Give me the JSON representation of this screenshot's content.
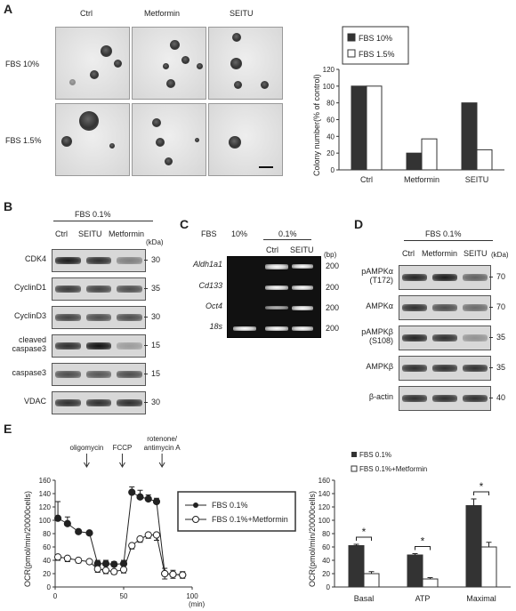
{
  "panels": {
    "A": "A",
    "B": "B",
    "C": "C",
    "D": "D",
    "E": "E"
  },
  "panelA": {
    "col_labels": [
      "Ctrl",
      "Metformin",
      "SEITU"
    ],
    "row_labels": [
      "FBS 10%",
      "FBS 1.5%"
    ]
  },
  "panelB": {
    "condition": "FBS 0.1%",
    "lanes": [
      "Ctrl",
      "SEITU",
      "Metformin"
    ],
    "kda_unit": "(kDa)",
    "rows": [
      {
        "label": "CDK4",
        "kda": "30"
      },
      {
        "label": "CyclinD1",
        "kda": "35"
      },
      {
        "label": "CyclinD3",
        "kda": "30"
      },
      {
        "label": "cleaved caspase3",
        "kda": "15"
      },
      {
        "label": "caspase3",
        "kda": "15"
      },
      {
        "label": "VDAC",
        "kda": "30"
      }
    ]
  },
  "panelC": {
    "fbs_label": "FBS",
    "fbs10": "10%",
    "fbs01": "0.1%",
    "lanes": [
      "Ctrl",
      "SEITU"
    ],
    "bp_unit": "(bp)",
    "rows": [
      {
        "label": "Aldh1a1",
        "bp": "200"
      },
      {
        "label": "Cd133",
        "bp": "200"
      },
      {
        "label": "Oct4",
        "bp": "200"
      },
      {
        "label": "18s",
        "bp": "200"
      }
    ]
  },
  "panelD": {
    "condition": "FBS 0.1%",
    "lanes": [
      "Ctrl",
      "Metformin",
      "SEITU"
    ],
    "kda_unit": "(kDa)",
    "rows": [
      {
        "label": "pAMPKα (T172)",
        "kda": "70"
      },
      {
        "label": "AMPKα",
        "kda": "70"
      },
      {
        "label": "pAMPKβ (S108)",
        "kda": "35"
      },
      {
        "label": "AMPKβ",
        "kda": "35"
      },
      {
        "label": "β-actin",
        "kda": "40"
      }
    ]
  },
  "chart_data": [
    {
      "type": "bar",
      "id": "A-colony",
      "categories": [
        "Ctrl",
        "Metformin",
        "SEITU"
      ],
      "series": [
        {
          "name": "FBS 10%",
          "values": [
            100,
            20,
            80
          ],
          "color": "#333333"
        },
        {
          "name": "FBS 1.5%",
          "values": [
            100,
            37,
            24
          ],
          "color": "#ffffff"
        }
      ],
      "ylabel": "Colony number(% of control)",
      "ylim": [
        0,
        120
      ],
      "yticks": [
        0,
        20,
        40,
        60,
        80,
        100,
        120
      ],
      "legend": "top-left"
    },
    {
      "type": "line",
      "id": "E-ocr",
      "xlabel": "(min)",
      "ylabel": "OCR(pmol/min/20000cells)",
      "xlim": [
        0,
        100
      ],
      "ylim": [
        0,
        160
      ],
      "xticks": [
        0,
        50,
        100
      ],
      "yticks": [
        0,
        20,
        40,
        60,
        80,
        100,
        120,
        140,
        160
      ],
      "x": [
        2,
        9,
        17,
        25,
        31,
        37,
        43,
        50,
        56,
        62,
        68,
        74,
        80,
        86,
        93
      ],
      "series": [
        {
          "name": "FBS 0.1%",
          "values": [
            103,
            95,
            83,
            81,
            35,
            35,
            34,
            35,
            142,
            135,
            132,
            128,
            20,
            19,
            18
          ],
          "errors": [
            25,
            10,
            3,
            3,
            5,
            5,
            4,
            5,
            8,
            10,
            6,
            5,
            8,
            6,
            5
          ],
          "marker": "filled"
        },
        {
          "name": "FBS 0.1%+Metformin",
          "values": [
            45,
            43,
            40,
            38,
            27,
            25,
            23,
            26,
            62,
            72,
            78,
            78,
            20,
            19,
            18
          ],
          "errors": [
            5,
            5,
            4,
            3,
            5,
            5,
            4,
            5,
            5,
            5,
            5,
            8,
            8,
            6,
            5
          ],
          "marker": "open"
        }
      ],
      "annotations": [
        "oligomycin",
        "FCCP",
        "rotenone/ antimycin A"
      ],
      "annotation_x": [
        23,
        49,
        78
      ]
    },
    {
      "type": "bar",
      "id": "E-bars",
      "categories": [
        "Basal",
        "ATP",
        "Maximal"
      ],
      "series": [
        {
          "name": "FBS 0.1%",
          "values": [
            62,
            48,
            122
          ],
          "errors": [
            2,
            2,
            10
          ],
          "color": "#333333"
        },
        {
          "name": "FBS 0.1%+Metformin",
          "values": [
            20,
            12,
            60
          ],
          "errors": [
            3,
            2,
            7
          ],
          "color": "#ffffff"
        }
      ],
      "ylabel": "OCR(pmol/min/20000cells)",
      "ylim": [
        0,
        160
      ],
      "yticks": [
        0,
        20,
        40,
        60,
        80,
        100,
        120,
        140,
        160
      ],
      "significance": [
        "*",
        "*",
        "*"
      ],
      "legend": "top-left"
    }
  ]
}
